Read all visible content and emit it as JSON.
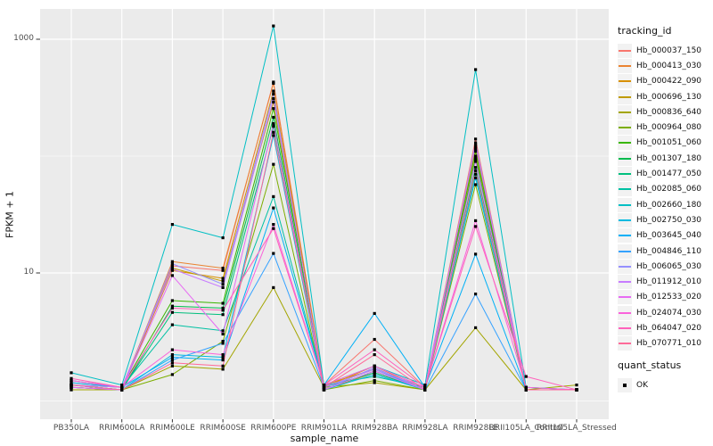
{
  "axes": {
    "x_label": "sample_name",
    "y_label": "FPKM + 1",
    "y_tick_labels": [
      "10",
      "1000"
    ]
  },
  "legend_tracking": {
    "title": "tracking_id"
  },
  "legend_quant": {
    "title": "quant_status",
    "item_label": "OK",
    "point_color": "#000000"
  },
  "style_colors": {
    "panel_bg": "#EBEBEB",
    "grid": "#FFFFFF",
    "tick": "#333333",
    "axis_text": "#4D4D4D",
    "point": "#000000"
  },
  "chart_data": {
    "type": "line",
    "title": "",
    "xlabel": "sample_name",
    "ylabel": "FPKM + 1",
    "y_scale": "log10",
    "y_ticks": [
      10,
      1000
    ],
    "y_minor_ticks": [
      100,
      0.8
    ],
    "ylim_log": [
      0.58,
      1800
    ],
    "grid": true,
    "legend_position": "right",
    "point_shape": "filled-square",
    "categories": [
      "PB350LA",
      "RRIM600LA",
      "RRIM600LE",
      "RRIM600SE",
      "RRIM600PE",
      "RRIM901LA",
      "RRIM928BA",
      "RRIM928LA",
      "RRIM928LE",
      "RRII105LA_Control",
      "RRII105LA_Stressed"
    ],
    "series": [
      {
        "name": "Hb_000037_150",
        "color": "#F8766D",
        "values": [
          1.15,
          1.05,
          11.5,
          10.5,
          430,
          1.1,
          2.7,
          1.05,
          140,
          1.0,
          1.0
        ]
      },
      {
        "name": "Hb_000413_030",
        "color": "#EA8331",
        "values": [
          1.1,
          1.0,
          12.5,
          11,
          420,
          1.05,
          1.6,
          1.0,
          120,
          1.0,
          1.0
        ]
      },
      {
        "name": "Hb_000422_090",
        "color": "#D89000",
        "values": [
          1.05,
          1.0,
          10.5,
          9,
          360,
          1.1,
          1.5,
          1.05,
          115,
          1.0,
          1.0
        ]
      },
      {
        "name": "Hb_000696_130",
        "color": "#C09B00",
        "values": [
          1.0,
          1.0,
          11,
          8.5,
          290,
          1.0,
          1.4,
          1.0,
          100,
          1.0,
          1.0
        ]
      },
      {
        "name": "Hb_000836_640",
        "color": "#A3A500",
        "values": [
          1.0,
          1.0,
          1.6,
          1.5,
          7.5,
          1.05,
          1.15,
          1.0,
          3.4,
          1.0,
          1.1
        ]
      },
      {
        "name": "Hb_000964_080",
        "color": "#7CAE00",
        "values": [
          1.05,
          1.0,
          1.35,
          2.6,
          85,
          1.0,
          1.2,
          1.0,
          57,
          1.0,
          1.0
        ]
      },
      {
        "name": "Hb_001051_060",
        "color": "#39B600",
        "values": [
          1.1,
          1.05,
          5.8,
          5.5,
          255,
          1.05,
          1.5,
          1.05,
          110,
          1.0,
          1.0
        ]
      },
      {
        "name": "Hb_001307_180",
        "color": "#00BB4E",
        "values": [
          1.05,
          1.0,
          5.2,
          5.0,
          215,
          1.0,
          1.45,
          1.0,
          95,
          1.0,
          1.0
        ]
      },
      {
        "name": "Hb_001477_050",
        "color": "#00BF7D",
        "values": [
          1.1,
          1.0,
          4.6,
          4.4,
          180,
          1.05,
          1.4,
          1.0,
          80,
          1.0,
          1.0
        ]
      },
      {
        "name": "Hb_002085_060",
        "color": "#00C1A3",
        "values": [
          1.2,
          1.05,
          3.6,
          3.2,
          45,
          1.1,
          1.3,
          1.05,
          70,
          1.05,
          1.0
        ]
      },
      {
        "name": "Hb_002660_180",
        "color": "#00BFC4",
        "values": [
          1.4,
          1.1,
          26,
          20,
          1300,
          1.1,
          1.6,
          1.1,
          550,
          1.05,
          1.0
        ]
      },
      {
        "name": "Hb_002750_030",
        "color": "#00BAE0",
        "values": [
          1.1,
          1.0,
          2.0,
          1.9,
          150,
          1.0,
          1.35,
          1.0,
          65,
          1.0,
          1.0
        ]
      },
      {
        "name": "Hb_003645_040",
        "color": "#00B0F6",
        "values": [
          1.15,
          1.05,
          1.9,
          1.8,
          36,
          1.1,
          4.5,
          1.05,
          14.5,
          1.0,
          1.0
        ]
      },
      {
        "name": "Hb_004846_110",
        "color": "#35A2FF",
        "values": [
          1.1,
          1.0,
          1.8,
          2.5,
          14.7,
          1.05,
          1.5,
          1.0,
          6.6,
          1.0,
          1.0
        ]
      },
      {
        "name": "Hb_006065_030",
        "color": "#9590FF",
        "values": [
          1.05,
          1.0,
          12,
          8,
          340,
          1.0,
          1.55,
          1.0,
          130,
          1.0,
          1.0
        ]
      },
      {
        "name": "Hb_011912_010",
        "color": "#C77CFF",
        "values": [
          1.1,
          1.05,
          10.8,
          7.5,
          310,
          1.05,
          1.5,
          1.05,
          125,
          1.0,
          1.0
        ]
      },
      {
        "name": "Hb_012533_020",
        "color": "#E76BF3",
        "values": [
          1.05,
          1.0,
          9.5,
          3.0,
          190,
          1.0,
          1.45,
          1.0,
          90,
          1.0,
          1.0
        ]
      },
      {
        "name": "Hb_024074_030",
        "color": "#FA62DB",
        "values": [
          1.2,
          1.05,
          2.2,
          2.0,
          26,
          1.1,
          1.6,
          1.05,
          28,
          1.05,
          1.0
        ]
      },
      {
        "name": "Hb_064047_020",
        "color": "#FF62BC",
        "values": [
          1.25,
          1.05,
          5.0,
          4.8,
          24,
          1.1,
          2.2,
          1.05,
          25,
          1.3,
          1.0
        ]
      },
      {
        "name": "Hb_070771_010",
        "color": "#FF6A98",
        "values": [
          1.1,
          1.0,
          1.7,
          1.6,
          160,
          1.05,
          2.0,
          1.0,
          75,
          1.0,
          1.0
        ]
      }
    ]
  }
}
